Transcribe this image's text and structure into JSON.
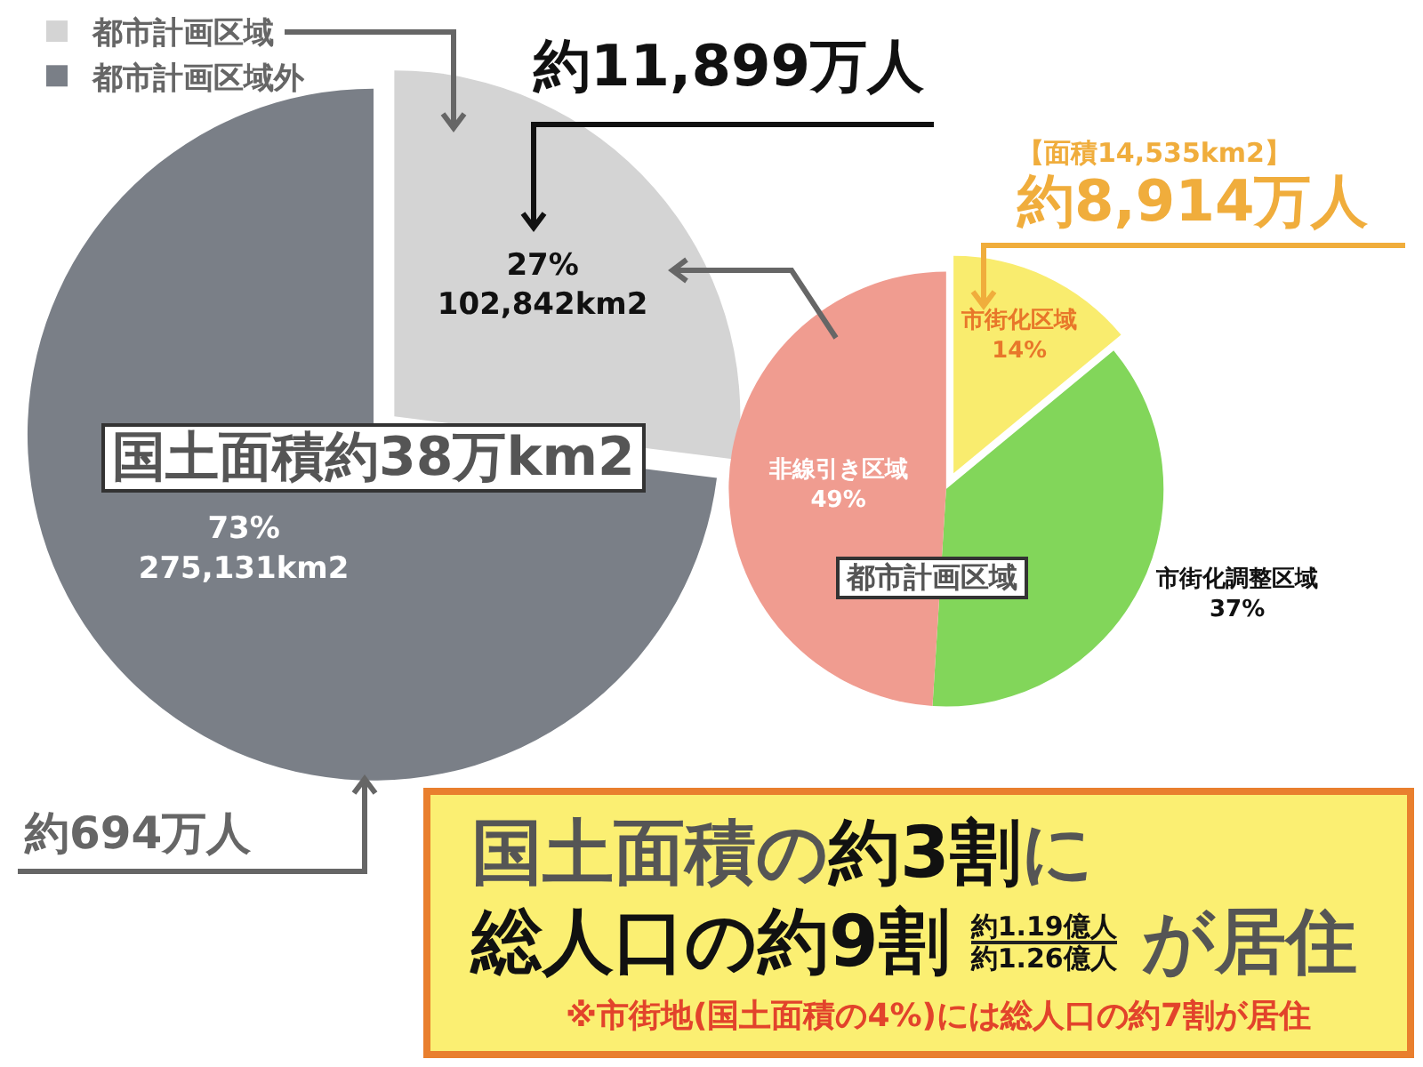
{
  "chart_data": [
    {
      "type": "pie",
      "categories": [
        "都市計画区域",
        "都市計画区域外"
      ],
      "values": [
        27,
        73
      ],
      "colors": [
        "#d4d4d4",
        "#7a7f87"
      ],
      "value_labels": [
        "27%\n102,842km2",
        "73%\n275,131km2"
      ],
      "legend": "top left",
      "annotations": [
        "約11,899万人",
        "約694万人",
        "国土面積約38万km2"
      ]
    },
    {
      "type": "pie",
      "categories": [
        "市街化区域",
        "市街化調整区域",
        "非線引き区域"
      ],
      "values": [
        14,
        37,
        49
      ],
      "colors": [
        "#f9ec6e",
        "#82d65a",
        "#f09c90"
      ],
      "value_labels": [
        "14%",
        "37%",
        "49%"
      ],
      "annotations": [
        "【面積14,535km2】",
        "約8,914万人",
        "都市計画区域"
      ]
    },
    {
      "type": "other",
      "annotations": [
        "国土面積の",
        "約3割",
        "に",
        "総人口の約9割",
        "約1.19億人",
        "約1.26億人",
        "が居住",
        "※市街地(国土面積の4%)には総人口の約7割が居住"
      ]
    }
  ]
}
